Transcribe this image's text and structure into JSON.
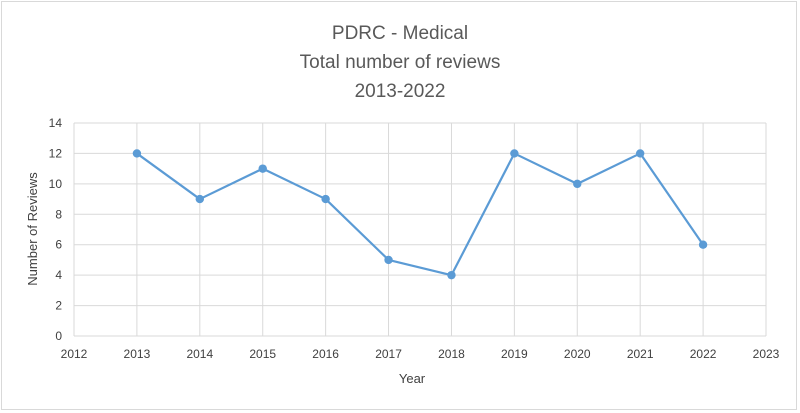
{
  "chart_data": {
    "type": "line",
    "title": [
      "PDRC - Medical",
      "Total number of reviews",
      "2013-2022"
    ],
    "xlabel": "Year",
    "ylabel": "Number of Reviews",
    "xlim": [
      2012,
      2023
    ],
    "ylim": [
      0,
      14
    ],
    "x_ticks": [
      2012,
      2013,
      2014,
      2015,
      2016,
      2017,
      2018,
      2019,
      2020,
      2021,
      2022,
      2023
    ],
    "y_ticks": [
      0,
      2,
      4,
      6,
      8,
      10,
      12,
      14
    ],
    "grid": true,
    "series": [
      {
        "name": "Total number of reviews",
        "x": [
          2013,
          2014,
          2015,
          2016,
          2017,
          2018,
          2019,
          2020,
          2021,
          2022
        ],
        "values": [
          12,
          9,
          11,
          9,
          5,
          4,
          12,
          10,
          12,
          6
        ],
        "color": "#5b9bd5"
      }
    ]
  }
}
